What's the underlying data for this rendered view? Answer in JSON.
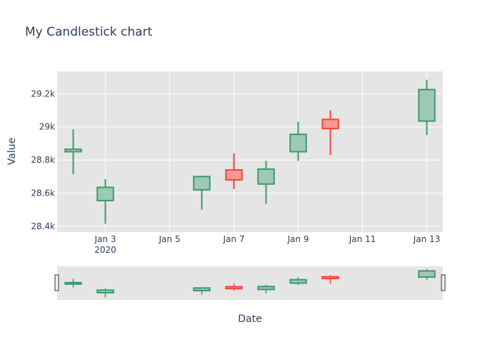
{
  "colors": {
    "plot_bg": "#e5e5e5",
    "grid": "#ffffff",
    "text": "#2a3f5f",
    "increasing_line": "#3d9970",
    "increasing_fill": "#9ec9b3",
    "decreasing_line": "#ff4136",
    "decreasing_fill": "#f79a93"
  },
  "chart_data": {
    "type": "candlestick",
    "title": "My Candlestick chart",
    "xlabel": "Date",
    "ylabel": "Value",
    "x_tick_labels": [
      {
        "date": "2020-01-03",
        "label": "Jan 3",
        "sub": "2020"
      },
      {
        "date": "2020-01-05",
        "label": "Jan 5"
      },
      {
        "date": "2020-01-07",
        "label": "Jan 7"
      },
      {
        "date": "2020-01-09",
        "label": "Jan 9"
      },
      {
        "date": "2020-01-11",
        "label": "Jan 11"
      },
      {
        "date": "2020-01-13",
        "label": "Jan 13"
      }
    ],
    "xlim": [
      "2020-01-01T12:00",
      "2020-01-13T12:00"
    ],
    "ylim": [
      28365,
      29335
    ],
    "y_ticks": [
      {
        "value": 28400,
        "label": "28.4k"
      },
      {
        "value": 28600,
        "label": "28.6k"
      },
      {
        "value": 28800,
        "label": "28.8k"
      },
      {
        "value": 29000,
        "label": "29k"
      },
      {
        "value": 29200,
        "label": "29.2k"
      }
    ],
    "grid": true,
    "rangeslider": true,
    "candles": [
      {
        "date": "2020-01-02",
        "open": 28850,
        "high": 28985,
        "low": 28715,
        "close": 28865
      },
      {
        "date": "2020-01-03",
        "open": 28555,
        "high": 28685,
        "low": 28415,
        "close": 28635
      },
      {
        "date": "2020-01-06",
        "open": 28620,
        "high": 28700,
        "low": 28500,
        "close": 28700
      },
      {
        "date": "2020-01-07",
        "open": 28740,
        "high": 28840,
        "low": 28625,
        "close": 28680
      },
      {
        "date": "2020-01-08",
        "open": 28655,
        "high": 28795,
        "low": 28535,
        "close": 28745
      },
      {
        "date": "2020-01-09",
        "open": 28850,
        "high": 29030,
        "low": 28795,
        "close": 28955
      },
      {
        "date": "2020-01-10",
        "open": 29045,
        "high": 29100,
        "low": 28830,
        "close": 28990
      },
      {
        "date": "2020-01-13",
        "open": 29035,
        "high": 29285,
        "low": 28950,
        "close": 29225
      }
    ]
  }
}
